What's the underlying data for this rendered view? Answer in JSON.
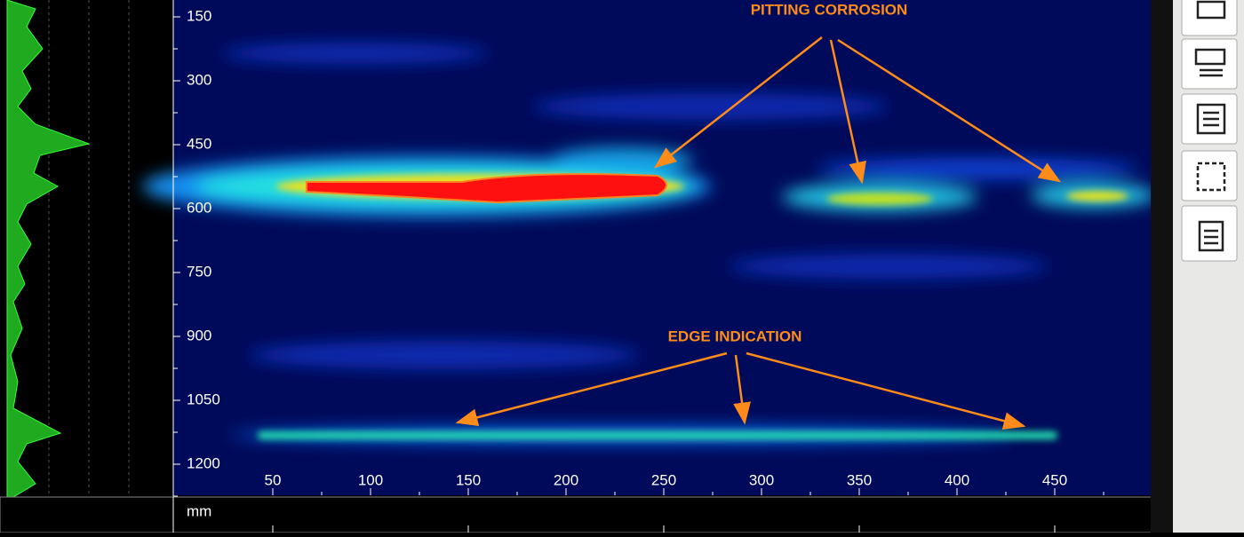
{
  "scan": {
    "yticks": [
      150,
      300,
      450,
      600,
      750,
      900,
      1050,
      1200
    ],
    "xticks": [
      50,
      100,
      150,
      200,
      250,
      300,
      350,
      400,
      450
    ],
    "unit": "mm",
    "annotations": [
      "PITTING CORROSION",
      "EDGE INDICATION"
    ]
  }
}
